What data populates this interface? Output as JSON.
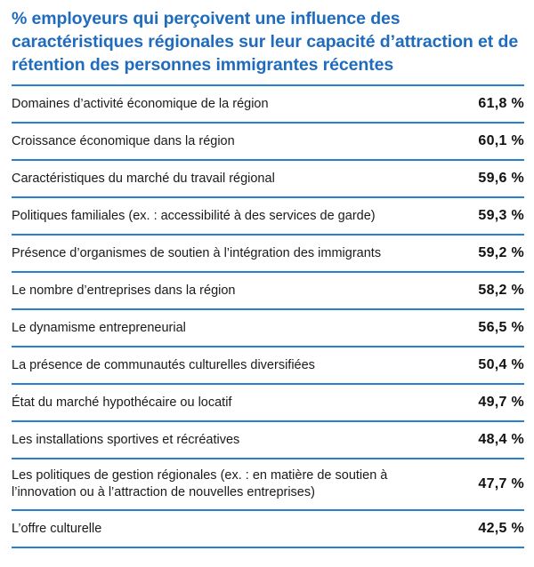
{
  "title": "% employeurs qui perçoivent une influence des caractéristiques régionales sur leur capacité d’attraction et de rétention des personnes immigrantes récentes",
  "colors": {
    "title": "#1f6bbd",
    "rule": "#2a7fd0",
    "text": "#1a1a1a"
  },
  "chart_data": {
    "type": "table",
    "title": "% employeurs qui perçoivent une influence des caractéristiques régionales sur leur capacité d’attraction et de rétention des personnes immigrantes récentes",
    "unit": "%",
    "rows": [
      {
        "label": "Domaines d’activité économique de la région",
        "value": 61.8,
        "display": "61,8 %"
      },
      {
        "label": "Croissance économique dans la région",
        "value": 60.1,
        "display": "60,1 %"
      },
      {
        "label": "Caractéristiques du marché du travail régional",
        "value": 59.6,
        "display": "59,6 %"
      },
      {
        "label": "Politiques familiales (ex. : accessibilité à des services de garde)",
        "value": 59.3,
        "display": "59,3 %"
      },
      {
        "label": "Présence d’organismes de soutien à l’intégration des immigrants",
        "value": 59.2,
        "display": "59,2 %"
      },
      {
        "label": "Le nombre d’entreprises dans la région",
        "value": 58.2,
        "display": "58,2 %"
      },
      {
        "label": "Le dynamisme entrepreneurial",
        "value": 56.5,
        "display": "56,5 %"
      },
      {
        "label": "La présence de communautés culturelles diversifiées",
        "value": 50.4,
        "display": "50,4 %"
      },
      {
        "label": "État du marché hypothécaire ou locatif",
        "value": 49.7,
        "display": "49,7 %"
      },
      {
        "label": "Les installations sportives et récréatives",
        "value": 48.4,
        "display": "48,4 %"
      },
      {
        "label": "Les politiques de gestion régionales (ex. : en matière de soutien à l’innovation ou à l’attraction de nouvelles entreprises)",
        "value": 47.7,
        "display": "47,7 %"
      },
      {
        "label": "L’offre culturelle",
        "value": 42.5,
        "display": "42,5 %"
      }
    ]
  }
}
